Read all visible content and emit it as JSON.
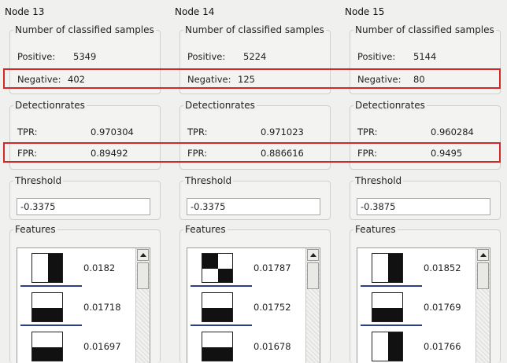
{
  "labels": {
    "samples_header": "Number of classified samples",
    "positive": "Positive:",
    "negative": "Negative:",
    "rates_header": "Detectionrates",
    "tpr": "TPR:",
    "fpr": "FPR:",
    "threshold_header": "Threshold",
    "features_header": "Features"
  },
  "nodes": [
    {
      "title": "Node 13",
      "positive": "5349",
      "negative": "402",
      "tpr": "0.970304",
      "fpr": "0.89492",
      "threshold": "-0.3375",
      "features": [
        {
          "value": "0.0182",
          "pattern": "left-white-right-black"
        },
        {
          "value": "0.01718",
          "pattern": "top-white-bottom-black"
        },
        {
          "value": "0.01697",
          "pattern": "top-white-bottom-black"
        }
      ]
    },
    {
      "title": "Node 14",
      "positive": "5224",
      "negative": "125",
      "tpr": "0.971023",
      "fpr": "0.886616",
      "threshold": "-0.3375",
      "features": [
        {
          "value": "0.01787",
          "pattern": "checkerboard"
        },
        {
          "value": "0.01752",
          "pattern": "top-white-bottom-black"
        },
        {
          "value": "0.01678",
          "pattern": "top-white-bottom-black"
        }
      ]
    },
    {
      "title": "Node 15",
      "positive": "5144",
      "negative": "80",
      "tpr": "0.960284",
      "fpr": "0.9495",
      "threshold": "-0.3875",
      "features": [
        {
          "value": "0.01852",
          "pattern": "left-white-right-black"
        },
        {
          "value": "0.01769",
          "pattern": "top-white-bottom-black"
        },
        {
          "value": "0.01766",
          "pattern": "left-white-right-black"
        }
      ]
    }
  ],
  "colors": {
    "highlight": "#d42828",
    "separator": "#2b3e8c"
  },
  "icons": {
    "scroll_up": "scroll-up-arrow-icon"
  }
}
